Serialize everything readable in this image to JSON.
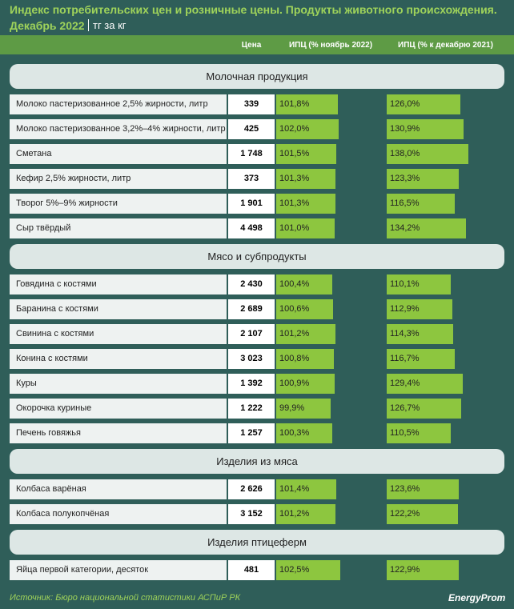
{
  "header": {
    "title": "Индекс потребительских цен и розничные цены. Продукты животного происхождения.",
    "subtitle": "Декабрь 2022",
    "unit": "тг за кг"
  },
  "columns": [
    "Цена",
    "ИПЦ (% ноябрь 2022)",
    "ИПЦ (% к декабрю 2021)"
  ],
  "month_lim": [
    85,
    115
  ],
  "year_lim": [
    10,
    195
  ],
  "groups": [
    {
      "title": "Молочная продукция",
      "rows": [
        {
          "name": "Молоко пастеризованное 2,5% жирности, литр",
          "price": "339",
          "cpi_month": 101.8,
          "cpi_month_label": "101,8%",
          "cpi_year": 126.0,
          "cpi_year_label": "126,0%"
        },
        {
          "name": "Молоко пастеризованное 3,2%–4% жирности, литр",
          "price": "425",
          "cpi_month": 102.0,
          "cpi_month_label": "102,0%",
          "cpi_year": 130.9,
          "cpi_year_label": "130,9%"
        },
        {
          "name": "Сметана",
          "price": "1 748",
          "cpi_month": 101.5,
          "cpi_month_label": "101,5%",
          "cpi_year": 138.0,
          "cpi_year_label": "138,0%"
        },
        {
          "name": "Кефир 2,5% жирности, литр",
          "price": "373",
          "cpi_month": 101.3,
          "cpi_month_label": "101,3%",
          "cpi_year": 123.3,
          "cpi_year_label": "123,3%"
        },
        {
          "name": "Творог 5%–9% жирности",
          "price": "1 901",
          "cpi_month": 101.3,
          "cpi_month_label": "101,3%",
          "cpi_year": 116.5,
          "cpi_year_label": "116,5%"
        },
        {
          "name": "Сыр твёрдый",
          "price": "4 498",
          "cpi_month": 101.0,
          "cpi_month_label": "101,0%",
          "cpi_year": 134.2,
          "cpi_year_label": "134,2%"
        }
      ]
    },
    {
      "title": "Мясо и субпродукты",
      "rows": [
        {
          "name": "Говядина с костями",
          "price": "2 430",
          "cpi_month": 100.4,
          "cpi_month_label": "100,4%",
          "cpi_year": 110.1,
          "cpi_year_label": "110,1%"
        },
        {
          "name": "Баранина с костями",
          "price": "2 689",
          "cpi_month": 100.6,
          "cpi_month_label": "100,6%",
          "cpi_year": 112.9,
          "cpi_year_label": "112,9%"
        },
        {
          "name": "Свинина с костями",
          "price": "2 107",
          "cpi_month": 101.2,
          "cpi_month_label": "101,2%",
          "cpi_year": 114.3,
          "cpi_year_label": "114,3%"
        },
        {
          "name": "Конина с костями",
          "price": "3 023",
          "cpi_month": 100.8,
          "cpi_month_label": "100,8%",
          "cpi_year": 116.7,
          "cpi_year_label": "116,7%"
        },
        {
          "name": "Куры",
          "price": "1 392",
          "cpi_month": 100.9,
          "cpi_month_label": "100,9%",
          "cpi_year": 129.4,
          "cpi_year_label": "129,4%"
        },
        {
          "name": "Окорочка куриные",
          "price": "1 222",
          "cpi_month": 99.9,
          "cpi_month_label": "99,9%",
          "cpi_year": 126.7,
          "cpi_year_label": "126,7%"
        },
        {
          "name": "Печень говяжья",
          "price": "1 257",
          "cpi_month": 100.3,
          "cpi_month_label": "100,3%",
          "cpi_year": 110.5,
          "cpi_year_label": "110,5%"
        }
      ]
    },
    {
      "title": "Изделия из мяса",
      "rows": [
        {
          "name": "Колбаса варёная",
          "price": "2 626",
          "cpi_month": 101.4,
          "cpi_month_label": "101,4%",
          "cpi_year": 123.6,
          "cpi_year_label": "123,6%"
        },
        {
          "name": "Колбаса полукопчёная",
          "price": "3 152",
          "cpi_month": 101.2,
          "cpi_month_label": "101,2%",
          "cpi_year": 122.2,
          "cpi_year_label": "122,2%"
        }
      ]
    },
    {
      "title": "Изделия птицеферм",
      "rows": [
        {
          "name": "Яйца первой категории, десяток",
          "price": "481",
          "cpi_month": 102.5,
          "cpi_month_label": "102,5%",
          "cpi_year": 122.9,
          "cpi_year_label": "122,9%"
        }
      ]
    }
  ],
  "source": "Источник: Бюро национальной статистики АСПиР РК",
  "logo": "EnergyProm"
}
